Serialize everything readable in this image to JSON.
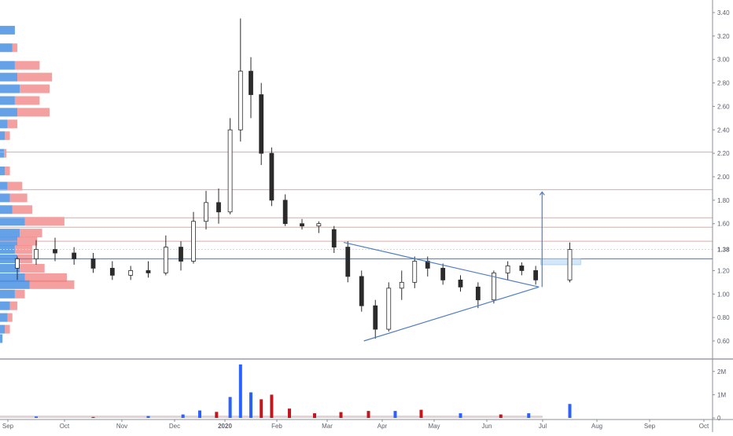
{
  "chart_data": {
    "type": "candlestick",
    "y_axis": {
      "ticks": [
        "3.40",
        "3.20",
        "3.00",
        "2.80",
        "2.60",
        "2.40",
        "2.20",
        "2.00",
        "1.80",
        "1.60",
        "1.38",
        "1.20",
        "1.00",
        "0.80",
        "0.60"
      ],
      "tick_values": [
        3.4,
        3.2,
        3.0,
        2.8,
        2.6,
        2.4,
        2.2,
        2.0,
        1.8,
        1.6,
        1.38,
        1.2,
        1.0,
        0.8,
        0.6
      ],
      "range": [
        0.55,
        3.45
      ],
      "last_price_label": "1.38",
      "last_price": 1.38
    },
    "volume_axis": {
      "ticks": [
        "2M",
        "1M",
        "0"
      ],
      "tick_values": [
        2000000,
        1000000,
        0
      ],
      "range": [
        0,
        2500000
      ]
    },
    "x_axis": {
      "labels": [
        "Sep",
        "Oct",
        "Nov",
        "Dec",
        "2020",
        "Feb",
        "Mar",
        "Apr",
        "May",
        "Jun",
        "Jul",
        "Aug",
        "Sep",
        "Oct"
      ],
      "months": [
        "2019-09",
        "2019-10",
        "2019-11",
        "2019-12",
        "2020-01",
        "2020-02",
        "2020-03",
        "2020-04",
        "2020-05",
        "2020-06",
        "2020-07",
        "2020-08",
        "2020-09",
        "2020-10"
      ],
      "bold_label": "2020"
    },
    "horizontal_levels": [
      {
        "value": 2.21,
        "kind": "resistance"
      },
      {
        "value": 1.89,
        "kind": "resistance"
      },
      {
        "value": 1.65,
        "kind": "resistance"
      },
      {
        "value": 1.57,
        "kind": "resistance"
      },
      {
        "value": 1.45,
        "kind": "resistance"
      },
      {
        "value": 1.38,
        "kind": "last-price"
      },
      {
        "value": 1.3,
        "kind": "support"
      }
    ],
    "triangle": {
      "upper": [
        {
          "date": "2020-03-10",
          "value": 1.44
        },
        {
          "date": "2020-06-29",
          "value": 1.06
        }
      ],
      "lower": [
        {
          "date": "2020-03-21",
          "value": 0.6
        },
        {
          "date": "2020-06-29",
          "value": 1.06
        }
      ]
    },
    "target_arrow": {
      "date": "2020-06-29",
      "from": 1.06,
      "to": 1.87
    },
    "target_box": {
      "from_date": "2020-06-30",
      "to_date": "2020-07-22",
      "low": 1.25,
      "high": 1.3
    },
    "candles": [
      {
        "date": "2019-09",
        "open": 1.22,
        "high": 1.32,
        "low": 1.12,
        "close": 1.3
      },
      {
        "date": "2019-09",
        "open": 1.3,
        "high": 1.46,
        "low": 1.25,
        "close": 1.38
      },
      {
        "date": "2019-09",
        "open": 1.38,
        "high": 1.48,
        "low": 1.28,
        "close": 1.35
      },
      {
        "date": "2019-10",
        "open": 1.35,
        "high": 1.4,
        "low": 1.25,
        "close": 1.3
      },
      {
        "date": "2019-10",
        "open": 1.3,
        "high": 1.35,
        "low": 1.18,
        "close": 1.22
      },
      {
        "date": "2019-10",
        "open": 1.22,
        "high": 1.28,
        "low": 1.12,
        "close": 1.16
      },
      {
        "date": "2019-11",
        "open": 1.16,
        "high": 1.24,
        "low": 1.12,
        "close": 1.2
      },
      {
        "date": "2019-11",
        "open": 1.2,
        "high": 1.28,
        "low": 1.14,
        "close": 1.18
      },
      {
        "date": "2019-11",
        "open": 1.18,
        "high": 1.5,
        "low": 1.16,
        "close": 1.4
      },
      {
        "date": "2019-12",
        "open": 1.4,
        "high": 1.45,
        "low": 1.2,
        "close": 1.28
      },
      {
        "date": "2019-12",
        "open": 1.28,
        "high": 1.7,
        "low": 1.26,
        "close": 1.62
      },
      {
        "date": "2019-12",
        "open": 1.62,
        "high": 1.88,
        "low": 1.55,
        "close": 1.78
      },
      {
        "date": "2019-12",
        "open": 1.78,
        "high": 1.9,
        "low": 1.6,
        "close": 1.7
      },
      {
        "date": "2020-01",
        "open": 1.7,
        "high": 2.5,
        "low": 1.68,
        "close": 2.4
      },
      {
        "date": "2020-01",
        "open": 2.4,
        "high": 3.35,
        "low": 2.3,
        "close": 2.9
      },
      {
        "date": "2020-01",
        "open": 2.9,
        "high": 3.02,
        "low": 2.5,
        "close": 2.7
      },
      {
        "date": "2020-01",
        "open": 2.7,
        "high": 2.8,
        "low": 2.1,
        "close": 2.2
      },
      {
        "date": "2020-01",
        "open": 2.2,
        "high": 2.25,
        "low": 1.75,
        "close": 1.8
      },
      {
        "date": "2020-02",
        "open": 1.8,
        "high": 1.85,
        "low": 1.58,
        "close": 1.6
      },
      {
        "date": "2020-02",
        "open": 1.6,
        "high": 1.64,
        "low": 1.55,
        "close": 1.58
      },
      {
        "date": "2020-02",
        "open": 1.58,
        "high": 1.62,
        "low": 1.52,
        "close": 1.6
      },
      {
        "date": "2020-03",
        "open": 1.55,
        "high": 1.58,
        "low": 1.35,
        "close": 1.4
      },
      {
        "date": "2020-03",
        "open": 1.4,
        "high": 1.45,
        "low": 1.1,
        "close": 1.15
      },
      {
        "date": "2020-03",
        "open": 1.15,
        "high": 1.2,
        "low": 0.85,
        "close": 0.9
      },
      {
        "date": "2020-03",
        "open": 0.9,
        "high": 0.95,
        "low": 0.62,
        "close": 0.7
      },
      {
        "date": "2020-04",
        "open": 0.7,
        "high": 1.1,
        "low": 0.68,
        "close": 1.05
      },
      {
        "date": "2020-04",
        "open": 1.05,
        "high": 1.2,
        "low": 0.95,
        "close": 1.1
      },
      {
        "date": "2020-04",
        "open": 1.1,
        "high": 1.32,
        "low": 1.05,
        "close": 1.28
      },
      {
        "date": "2020-04",
        "open": 1.28,
        "high": 1.32,
        "low": 1.15,
        "close": 1.22
      },
      {
        "date": "2020-05",
        "open": 1.22,
        "high": 1.26,
        "low": 1.08,
        "close": 1.12
      },
      {
        "date": "2020-05",
        "open": 1.12,
        "high": 1.16,
        "low": 1.02,
        "close": 1.06
      },
      {
        "date": "2020-05",
        "open": 1.06,
        "high": 1.1,
        "low": 0.88,
        "close": 0.95
      },
      {
        "date": "2020-06",
        "open": 0.95,
        "high": 1.2,
        "low": 0.92,
        "close": 1.18
      },
      {
        "date": "2020-06",
        "open": 1.18,
        "high": 1.28,
        "low": 1.12,
        "close": 1.24
      },
      {
        "date": "2020-06",
        "open": 1.24,
        "high": 1.27,
        "low": 1.16,
        "close": 1.2
      },
      {
        "date": "2020-06",
        "open": 1.2,
        "high": 1.24,
        "low": 1.08,
        "close": 1.12
      },
      {
        "date": "2020-07",
        "open": 1.12,
        "high": 1.44,
        "low": 1.1,
        "close": 1.38
      }
    ],
    "volume_bars": [
      {
        "date": "2019-09",
        "value": 60000,
        "dir": "up"
      },
      {
        "date": "2019-10",
        "value": 40000,
        "dir": "down"
      },
      {
        "date": "2019-11",
        "value": 80000,
        "dir": "up"
      },
      {
        "date": "2019-12",
        "value": 150000,
        "dir": "up"
      },
      {
        "date": "2019-12",
        "value": 320000,
        "dir": "up"
      },
      {
        "date": "2019-12",
        "value": 260000,
        "dir": "down"
      },
      {
        "date": "2020-01",
        "value": 900000,
        "dir": "up"
      },
      {
        "date": "2020-01",
        "value": 2300000,
        "dir": "up"
      },
      {
        "date": "2020-01",
        "value": 1100000,
        "dir": "up"
      },
      {
        "date": "2020-01",
        "value": 800000,
        "dir": "down"
      },
      {
        "date": "2020-01",
        "value": 1000000,
        "dir": "down"
      },
      {
        "date": "2020-02",
        "value": 400000,
        "dir": "down"
      },
      {
        "date": "2020-02",
        "value": 200000,
        "dir": "down"
      },
      {
        "date": "2020-03",
        "value": 250000,
        "dir": "down"
      },
      {
        "date": "2020-03",
        "value": 300000,
        "dir": "down"
      },
      {
        "date": "2020-04",
        "value": 300000,
        "dir": "up"
      },
      {
        "date": "2020-04",
        "value": 350000,
        "dir": "down"
      },
      {
        "date": "2020-05",
        "value": 200000,
        "dir": "up"
      },
      {
        "date": "2020-06",
        "value": 150000,
        "dir": "down"
      },
      {
        "date": "2020-06",
        "value": 200000,
        "dir": "up"
      },
      {
        "date": "2020-07",
        "value": 600000,
        "dir": "up"
      }
    ],
    "volume_profile": [
      {
        "price": 3.25,
        "up": 0.3,
        "down": 0.0
      },
      {
        "price": 3.1,
        "up": 0.25,
        "down": 0.1
      },
      {
        "price": 2.95,
        "up": 0.3,
        "down": 0.5
      },
      {
        "price": 2.85,
        "up": 0.35,
        "down": 0.7
      },
      {
        "price": 2.75,
        "up": 0.4,
        "down": 0.6
      },
      {
        "price": 2.65,
        "up": 0.3,
        "down": 0.5
      },
      {
        "price": 2.55,
        "up": 0.35,
        "down": 0.65
      },
      {
        "price": 2.45,
        "up": 0.15,
        "down": 0.2
      },
      {
        "price": 2.35,
        "up": 0.1,
        "down": 0.1
      },
      {
        "price": 2.2,
        "up": 0.08,
        "down": 0.05
      },
      {
        "price": 2.05,
        "up": 0.1,
        "down": 0.1
      },
      {
        "price": 1.92,
        "up": 0.15,
        "down": 0.3
      },
      {
        "price": 1.82,
        "up": 0.2,
        "down": 0.35
      },
      {
        "price": 1.72,
        "up": 0.25,
        "down": 0.4
      },
      {
        "price": 1.62,
        "up": 0.5,
        "down": 0.8
      },
      {
        "price": 1.52,
        "up": 0.4,
        "down": 0.45
      },
      {
        "price": 1.45,
        "up": 0.35,
        "down": 0.4
      },
      {
        "price": 1.38,
        "up": 0.3,
        "down": 0.35
      },
      {
        "price": 1.3,
        "up": 0.35,
        "down": 0.3
      },
      {
        "price": 1.22,
        "up": 0.4,
        "down": 0.5
      },
      {
        "price": 1.14,
        "up": 0.5,
        "down": 0.85
      },
      {
        "price": 1.08,
        "up": 0.6,
        "down": 0.9
      },
      {
        "price": 1.0,
        "up": 0.3,
        "down": 0.2
      },
      {
        "price": 0.9,
        "up": 0.2,
        "down": 0.15
      },
      {
        "price": 0.8,
        "up": 0.15,
        "down": 0.1
      },
      {
        "price": 0.7,
        "up": 0.1,
        "down": 0.1
      },
      {
        "price": 0.62,
        "up": 0.05,
        "down": 0.0
      }
    ],
    "colors": {
      "candle": "#2b2b2b",
      "volume_up": "#2962ff",
      "volume_down": "#c2171c",
      "profile_up": "#4a90e2",
      "profile_down": "#f08080",
      "level_red": "#e8a3a3",
      "level_blue": "#5b8fd0",
      "triangle": "#4f7cc2",
      "box_fill": "#c9e2f8",
      "grid": "#f0f3fa",
      "axis_text": "#5d606b"
    },
    "grid": false,
    "legend": "none"
  }
}
